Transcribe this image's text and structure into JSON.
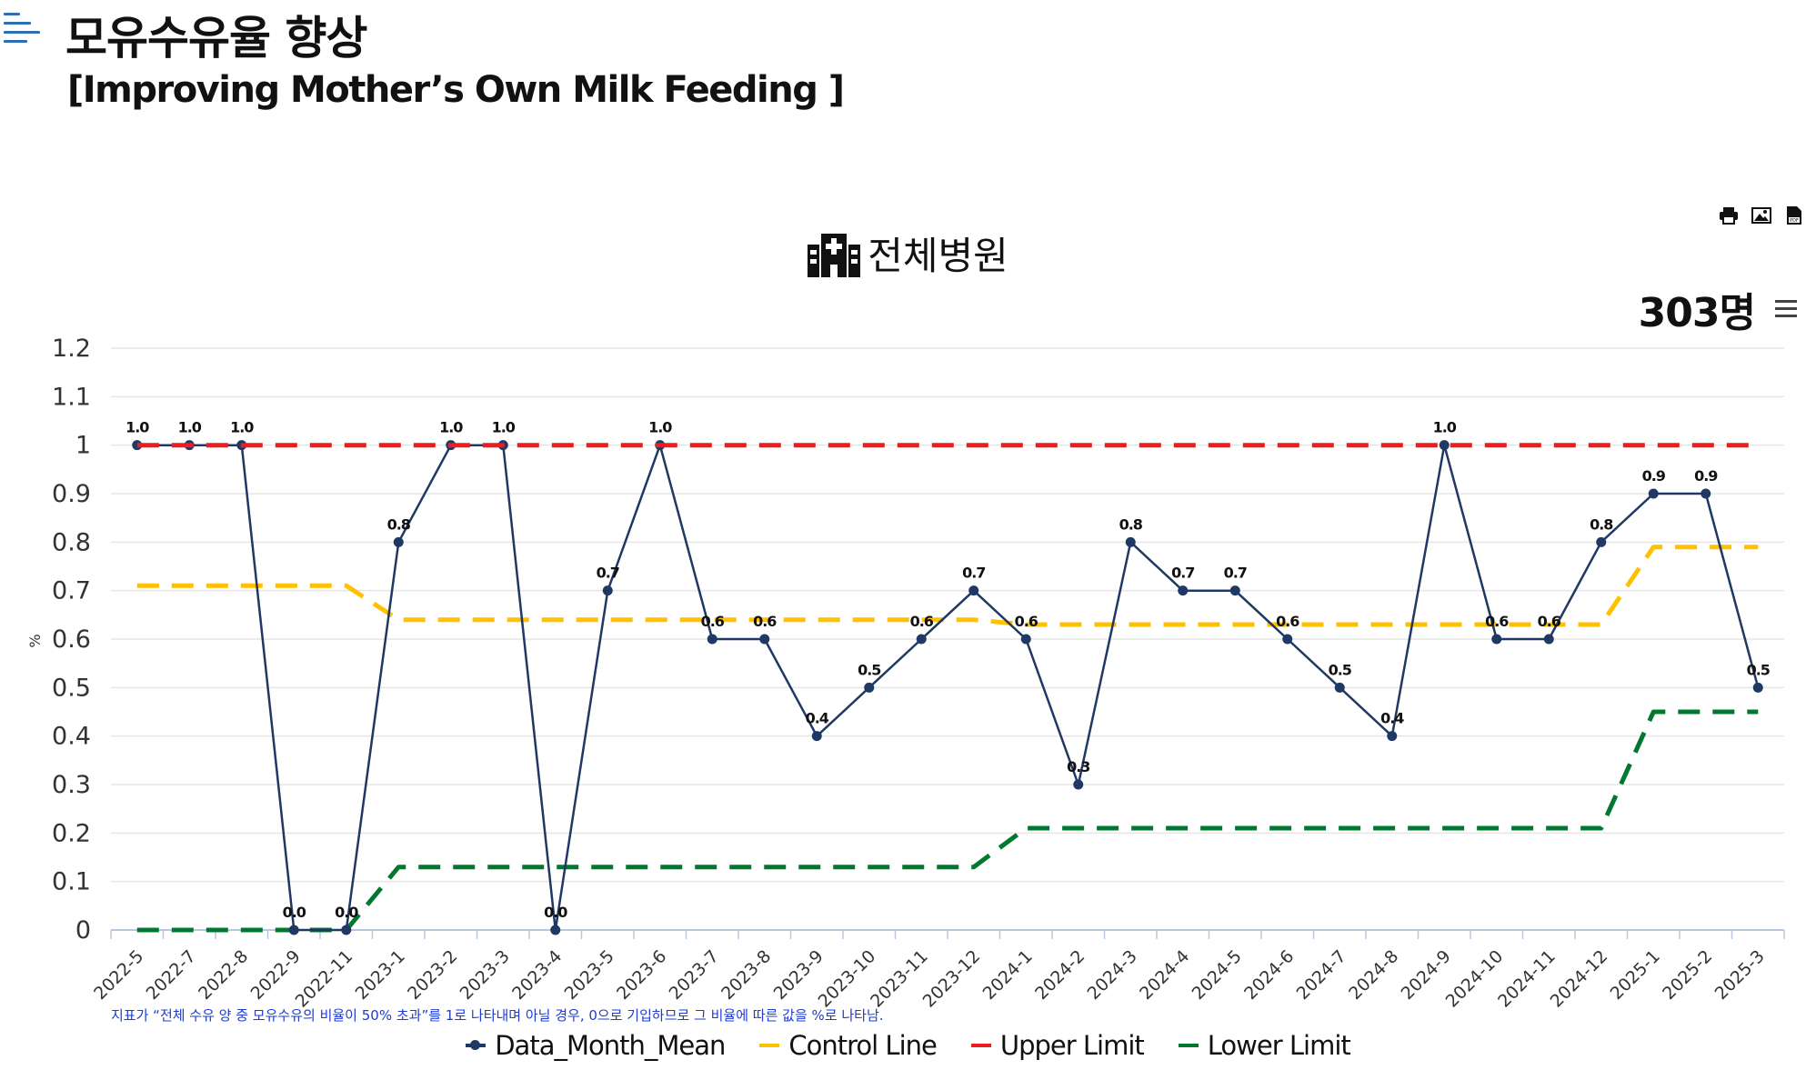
{
  "header": {
    "title_ko": "모유수유율 향상",
    "title_en": "[Improving Mother’s Own Milk Feeding ]"
  },
  "chart_header": {
    "title": "전체병원",
    "count": "303명"
  },
  "colors": {
    "mean": "#1f3864",
    "control": "#ffc000",
    "upper": "#ee1c1c",
    "lower": "#00782f",
    "grid": "#e6e6e6",
    "note": "#1e3cd2",
    "menu_icon": "#2c6fb7"
  },
  "chart_data": {
    "type": "line",
    "title": "전체병원",
    "ylabel": "%",
    "xlabel": "",
    "ylim": [
      0,
      1.2
    ],
    "yticks": [
      "0",
      "0.1",
      "0.2",
      "0.3",
      "0.4",
      "0.5",
      "0.6",
      "0.7",
      "0.8",
      "0.9",
      "1",
      "1.1",
      "1.2"
    ],
    "categories": [
      "2022-5",
      "2022-7",
      "2022-8",
      "2022-9",
      "2022-11",
      "2023-1",
      "2023-2",
      "2023-3",
      "2023-4",
      "2023-5",
      "2023-6",
      "2023-7",
      "2023-8",
      "2023-9",
      "2023-10",
      "2023-11",
      "2023-12",
      "2024-1",
      "2024-2",
      "2024-3",
      "2024-4",
      "2024-5",
      "2024-6",
      "2024-7",
      "2024-8",
      "2024-9",
      "2024-10",
      "2024-11",
      "2024-12",
      "2025-1",
      "2025-2",
      "2025-3"
    ],
    "series": [
      {
        "name": "Data_Month_Mean",
        "style": "solid-markers",
        "values": [
          1.0,
          1.0,
          1.0,
          0.0,
          0.0,
          0.8,
          1.0,
          1.0,
          0.0,
          0.7,
          1.0,
          0.6,
          0.6,
          0.4,
          0.5,
          0.6,
          0.7,
          0.6,
          0.3,
          0.8,
          0.7,
          0.7,
          0.6,
          0.5,
          0.4,
          1.0,
          0.6,
          0.6,
          0.8,
          0.9,
          0.9,
          0.5
        ],
        "labels": [
          "1.0",
          "1.0",
          "1.0",
          "0.0",
          "0.0",
          "0.8",
          "1.0",
          "1.0",
          "0.0",
          "0.7",
          "1.0",
          "0.6",
          "0.6",
          "0.4",
          "0.5",
          "0.6",
          "0.7",
          "0.6",
          "0.3",
          "0.8",
          "0.7",
          "0.7",
          "0.6",
          "0.5",
          "0.4",
          "1.0",
          "0.6",
          "0.6",
          "0.8",
          "0.9",
          "0.9",
          "0.5"
        ]
      },
      {
        "name": "Control Line",
        "style": "dashed",
        "values": [
          0.71,
          0.71,
          0.71,
          0.71,
          0.71,
          0.64,
          0.64,
          0.64,
          0.64,
          0.64,
          0.64,
          0.64,
          0.64,
          0.64,
          0.64,
          0.64,
          0.64,
          0.63,
          0.63,
          0.63,
          0.63,
          0.63,
          0.63,
          0.63,
          0.63,
          0.63,
          0.63,
          0.63,
          0.63,
          0.79,
          0.79,
          0.79
        ]
      },
      {
        "name": "Upper Limit",
        "style": "dashed",
        "values": [
          1,
          1,
          1,
          1,
          1,
          1,
          1,
          1,
          1,
          1,
          1,
          1,
          1,
          1,
          1,
          1,
          1,
          1,
          1,
          1,
          1,
          1,
          1,
          1,
          1,
          1,
          1,
          1,
          1,
          1,
          1,
          1
        ]
      },
      {
        "name": "Lower Limit",
        "style": "dashed",
        "values": [
          0,
          0,
          0,
          0,
          0,
          0.13,
          0.13,
          0.13,
          0.13,
          0.13,
          0.13,
          0.13,
          0.13,
          0.13,
          0.13,
          0.13,
          0.13,
          0.21,
          0.21,
          0.21,
          0.21,
          0.21,
          0.21,
          0.21,
          0.21,
          0.21,
          0.21,
          0.21,
          0.21,
          0.45,
          0.45,
          0.45
        ]
      }
    ],
    "legend": [
      "Data_Month_Mean",
      "Control Line",
      "Upper Limit",
      "Lower Limit"
    ],
    "legend_position": "bottom",
    "grid": true,
    "note": "지표가 “전체 수유 양 중 모유수유의 비율이 50% 초과”를 1로 나타내며 아닐 경우, 0으로 기입하므로 그 비율에 따른 값을 %로 나타남."
  }
}
